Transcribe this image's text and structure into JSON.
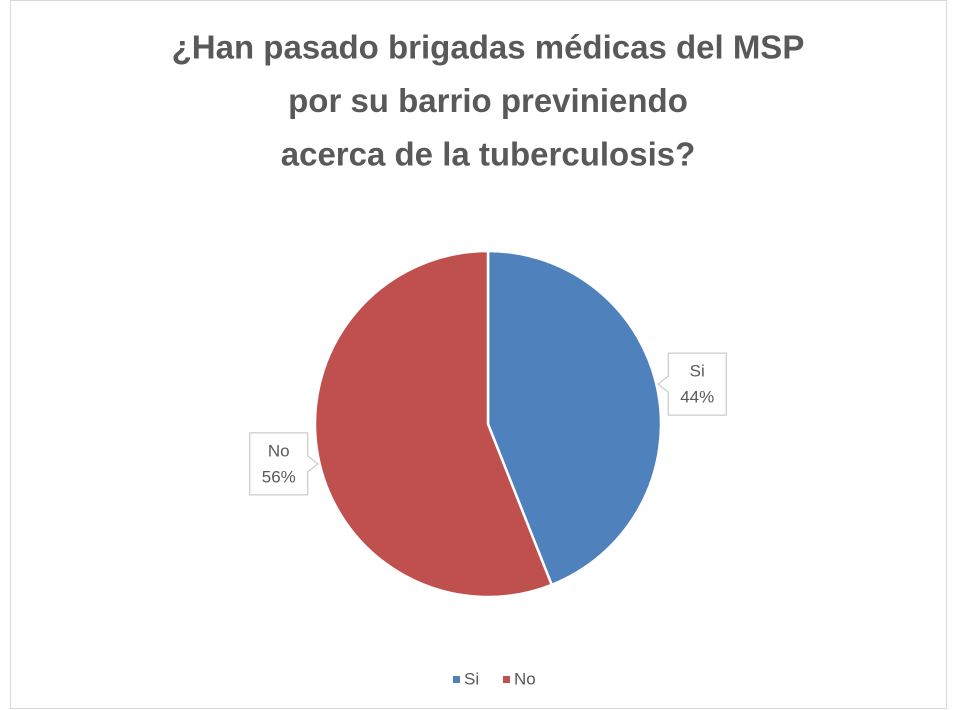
{
  "chart_data": {
    "type": "pie",
    "title": [
      "¿Han pasado brigadas médicas del MSP",
      "por su barrio previniendo",
      "acerca de la tuberculosis?"
    ],
    "categories": [
      "Si",
      "No"
    ],
    "values": [
      44,
      56
    ],
    "value_labels": [
      "44%",
      "56%"
    ],
    "colors": [
      "#4f81bd",
      "#c0504d"
    ],
    "legend": "bottom"
  }
}
